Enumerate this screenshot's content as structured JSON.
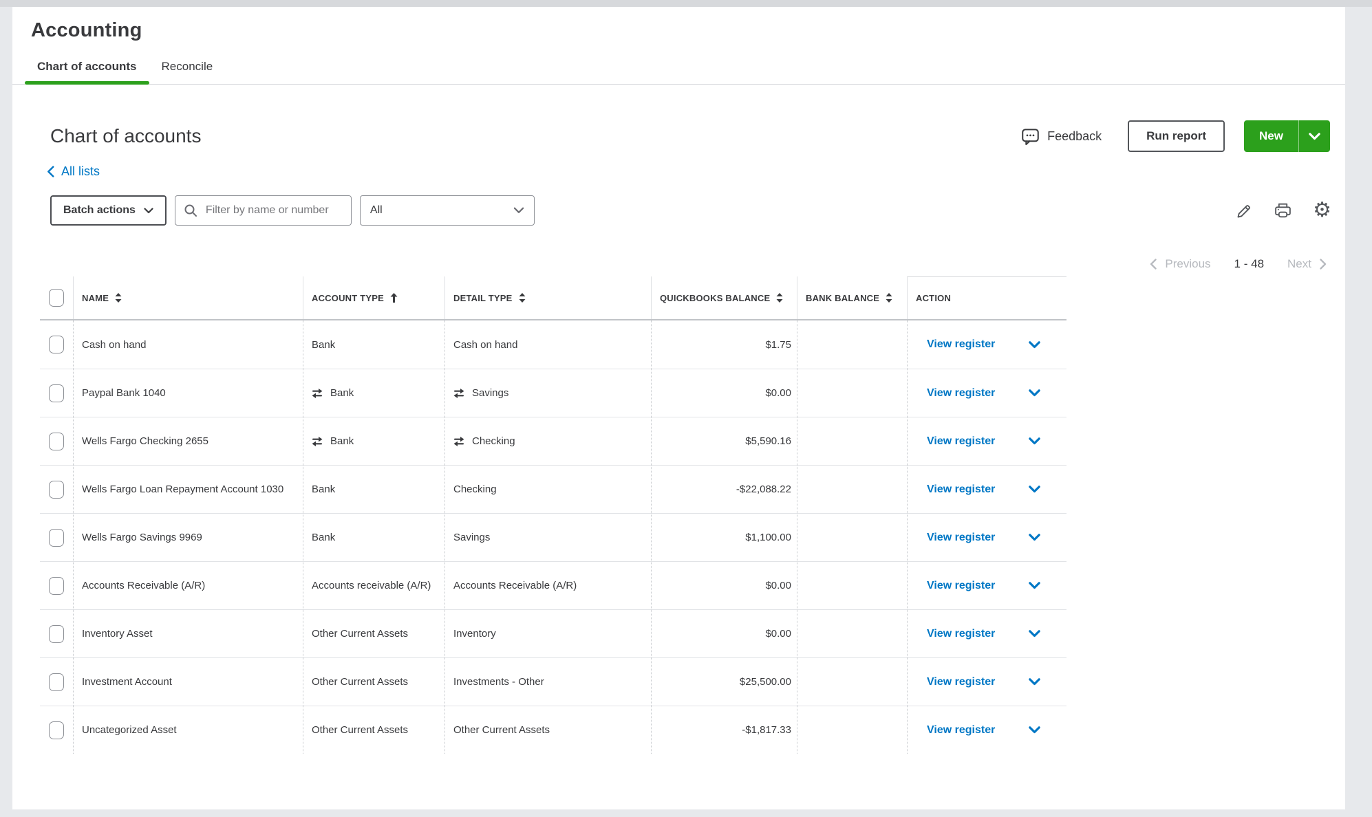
{
  "page": {
    "title": "Accounting"
  },
  "tabs": [
    {
      "label": "Chart of accounts",
      "active": true
    },
    {
      "label": "Reconcile",
      "active": false
    }
  ],
  "header": {
    "title": "Chart of accounts",
    "back_link": "All lists",
    "feedback_label": "Feedback",
    "run_report_label": "Run report",
    "new_label": "New"
  },
  "toolbar": {
    "batch_actions_label": "Batch actions",
    "filter_placeholder": "Filter by name or number",
    "filter_select_value": "All"
  },
  "pagination": {
    "previous_label": "Previous",
    "range": "1 - 48",
    "next_label": "Next"
  },
  "table": {
    "columns": [
      {
        "label": "NAME",
        "sort": "both"
      },
      {
        "label": "ACCOUNT TYPE",
        "sort": "asc"
      },
      {
        "label": "DETAIL TYPE",
        "sort": "both"
      },
      {
        "label": "QUICKBOOKS BALANCE",
        "sort": "both"
      },
      {
        "label": "BANK BALANCE",
        "sort": "both"
      },
      {
        "label": "ACTION",
        "sort": "none"
      }
    ],
    "action_label": "View register",
    "rows": [
      {
        "name": "Cash on hand",
        "account_type": "Bank",
        "detail_type": "Cash on hand",
        "qb_balance": "$1.75",
        "bank_balance": "",
        "linked": false
      },
      {
        "name": "Paypal Bank 1040",
        "account_type": "Bank",
        "detail_type": "Savings",
        "qb_balance": "$0.00",
        "bank_balance": "",
        "linked": true
      },
      {
        "name": "Wells Fargo Checking 2655",
        "account_type": "Bank",
        "detail_type": "Checking",
        "qb_balance": "$5,590.16",
        "bank_balance": "",
        "linked": true
      },
      {
        "name": "Wells Fargo Loan Repayment Account 1030",
        "account_type": "Bank",
        "detail_type": "Checking",
        "qb_balance": "-$22,088.22",
        "bank_balance": "",
        "linked": false
      },
      {
        "name": "Wells Fargo Savings 9969",
        "account_type": "Bank",
        "detail_type": "Savings",
        "qb_balance": "$1,100.00",
        "bank_balance": "",
        "linked": false
      },
      {
        "name": "Accounts Receivable (A/R)",
        "account_type": "Accounts receivable (A/R)",
        "detail_type": "Accounts Receivable (A/R)",
        "qb_balance": "$0.00",
        "bank_balance": "",
        "linked": false
      },
      {
        "name": "Inventory Asset",
        "account_type": "Other Current Assets",
        "detail_type": "Inventory",
        "qb_balance": "$0.00",
        "bank_balance": "",
        "linked": false
      },
      {
        "name": "Investment Account",
        "account_type": "Other Current Assets",
        "detail_type": "Investments - Other",
        "qb_balance": "$25,500.00",
        "bank_balance": "",
        "linked": false
      },
      {
        "name": "Uncategorized Asset",
        "account_type": "Other Current Assets",
        "detail_type": "Other Current Assets",
        "qb_balance": "-$1,817.33",
        "bank_balance": "",
        "linked": false
      }
    ]
  },
  "colors": {
    "accent_green": "#2CA01C",
    "link_blue": "#0077C5",
    "text_dark": "#393A3D"
  },
  "icons": {
    "feedback": "speech-bubble",
    "search": "magnifier",
    "edit": "pencil",
    "print": "printer",
    "settings": "gear",
    "linked_account": "sync-arrows",
    "gear_glyph": "⚙"
  }
}
